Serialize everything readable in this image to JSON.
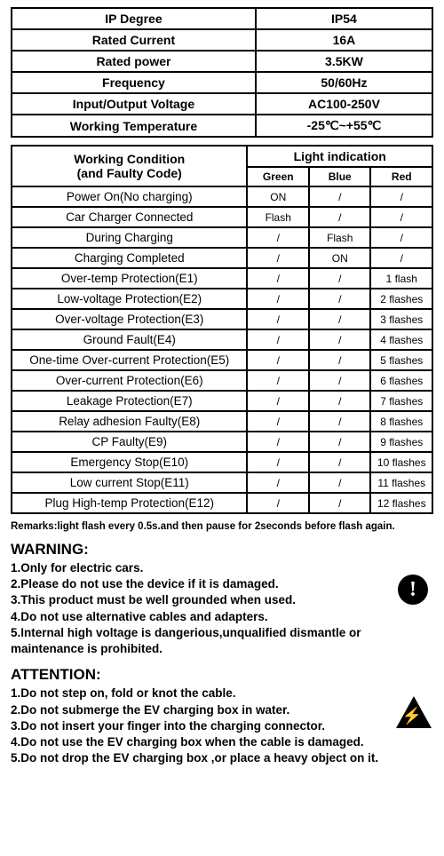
{
  "spec": {
    "rows": [
      {
        "label": "IP Degree",
        "value": "IP54"
      },
      {
        "label": "Rated Current",
        "value": "16A"
      },
      {
        "label": "Rated power",
        "value": "3.5KW"
      },
      {
        "label": "Frequency",
        "value": "50/60Hz"
      },
      {
        "label": "Input/Output Voltage",
        "value": "AC100-250V"
      },
      {
        "label": "Working Temperature",
        "value": "-25℃~+55℃"
      }
    ]
  },
  "fault": {
    "condHeader": "Working Condition\n(and Faulty Code)",
    "lightHeader": "Light indication",
    "subGreen": "Green",
    "subBlue": "Blue",
    "subRed": "Red",
    "rows": [
      {
        "cond": "Power On(No charging)",
        "g": "ON",
        "b": "/",
        "r": "/"
      },
      {
        "cond": "Car Charger Connected",
        "g": "Flash",
        "b": "/",
        "r": "/"
      },
      {
        "cond": "During Charging",
        "g": "/",
        "b": "Flash",
        "r": "/"
      },
      {
        "cond": "Charging Completed",
        "g": "/",
        "b": "ON",
        "r": "/"
      },
      {
        "cond": "Over-temp Protection(E1)",
        "g": "/",
        "b": "/",
        "r": "1 flash"
      },
      {
        "cond": "Low-voltage Protection(E2)",
        "g": "/",
        "b": "/",
        "r": "2 flashes"
      },
      {
        "cond": "Over-voltage Protection(E3)",
        "g": "/",
        "b": "/",
        "r": "3 flashes"
      },
      {
        "cond": "Ground Fault(E4)",
        "g": "/",
        "b": "/",
        "r": "4 flashes"
      },
      {
        "cond": "One-time Over-current Protection(E5)",
        "g": "/",
        "b": "/",
        "r": "5 flashes"
      },
      {
        "cond": "Over-current Protection(E6)",
        "g": "/",
        "b": "/",
        "r": "6 flashes"
      },
      {
        "cond": "Leakage Protection(E7)",
        "g": "/",
        "b": "/",
        "r": "7 flashes"
      },
      {
        "cond": "Relay adhesion Faulty(E8)",
        "g": "/",
        "b": "/",
        "r": "8 flashes"
      },
      {
        "cond": "CP Faulty(E9)",
        "g": "/",
        "b": "/",
        "r": "9 flashes"
      },
      {
        "cond": "Emergency Stop(E10)",
        "g": "/",
        "b": "/",
        "r": "10 flashes"
      },
      {
        "cond": "Low current Stop(E11)",
        "g": "/",
        "b": "/",
        "r": "11 flashes"
      },
      {
        "cond": "Plug High-temp Protection(E12)",
        "g": "/",
        "b": "/",
        "r": "12 flashes"
      }
    ]
  },
  "remarks": "Remarks:light flash every 0.5s.and then pause for 2seconds before flash again.",
  "warning": {
    "title": "WARNING:",
    "items": [
      "1.Only for electric cars.",
      "2.Please do not use the device if it is damaged.",
      "3.This product must be well grounded when used.",
      "4.Do not use alternative cables and adapters.",
      "5.Internal high voltage is dangerious,unqualified dismantle or maintenance is prohibited."
    ],
    "iconGlyph": "!"
  },
  "attention": {
    "title": "ATTENTION:",
    "items": [
      "1.Do not step on, fold or knot the cable.",
      "2.Do not submerge the EV charging box in water.",
      "3.Do not insert your finger into the charging connector.",
      "4.Do not use the EV charging box when the cable is damaged.",
      "5.Do not drop the EV charging box ,or place a heavy object on it."
    ],
    "iconGlyph": "⚡"
  }
}
